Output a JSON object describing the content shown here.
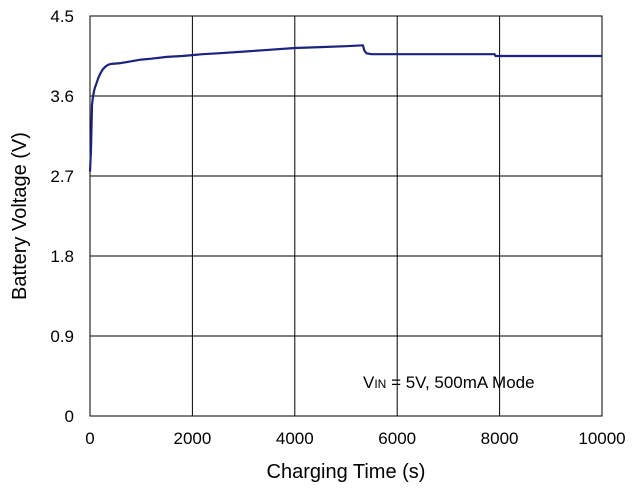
{
  "chart_data": {
    "type": "line",
    "title": "",
    "xlabel": "Charging Time (s)",
    "ylabel": "Battery Voltage (V)",
    "xlim": [
      0,
      10000
    ],
    "ylim": [
      0,
      4.5
    ],
    "x_ticks": [
      0,
      2000,
      4000,
      6000,
      8000,
      10000
    ],
    "y_ticks": [
      0,
      0.9,
      1.8,
      2.7,
      3.6,
      4.5
    ],
    "x_tick_labels": [
      "0",
      "2000",
      "4000",
      "6000",
      "8000",
      "10000"
    ],
    "y_tick_labels": [
      "0",
      "0.9",
      "1.8",
      "2.7",
      "3.6",
      "4.5"
    ],
    "grid": true,
    "annotation": {
      "v": "V",
      "sub": "IN",
      "rest": " = 5V, 500mA Mode"
    },
    "line_color": "#1a237e",
    "series": [
      {
        "x": [
          0,
          20,
          40,
          60,
          80,
          100,
          130,
          160,
          200,
          250,
          300,
          350,
          400,
          600,
          800,
          1000,
          1200,
          1500,
          1800,
          2000,
          2200,
          2500,
          3000,
          3500,
          4000,
          4500,
          5000,
          5330,
          5360,
          5400,
          5500,
          6000,
          7000,
          7900,
          7920,
          8000,
          9000,
          10000
        ],
        "y": [
          2.75,
          3.0,
          3.5,
          3.6,
          3.66,
          3.7,
          3.75,
          3.8,
          3.85,
          3.9,
          3.93,
          3.95,
          3.96,
          3.97,
          3.99,
          4.01,
          4.02,
          4.04,
          4.05,
          4.06,
          4.07,
          4.08,
          4.1,
          4.12,
          4.14,
          4.15,
          4.16,
          4.17,
          4.11,
          4.08,
          4.07,
          4.07,
          4.07,
          4.07,
          4.05,
          4.05,
          4.05,
          4.05
        ]
      }
    ]
  }
}
